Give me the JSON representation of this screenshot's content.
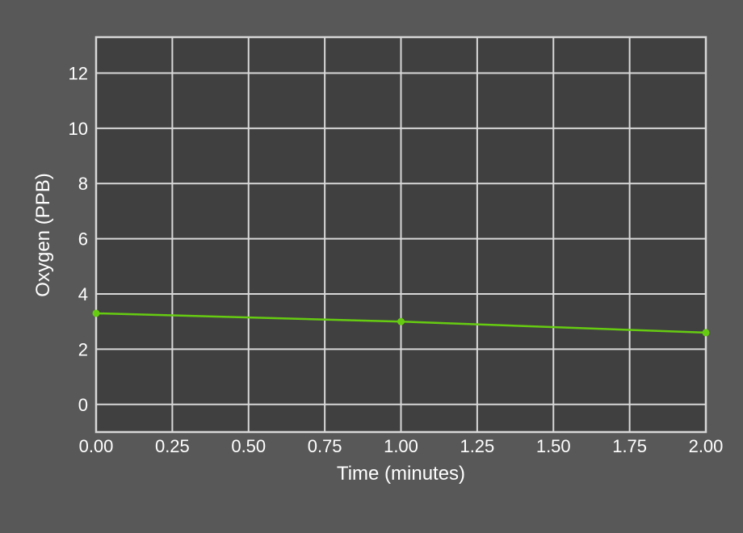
{
  "colors": {
    "page_background": "#585858",
    "plot_background": "#404040",
    "grid": "#d8d8d8",
    "frame": "#d8d8d8",
    "text": "#ffffff",
    "series": "#66cc11"
  },
  "chart_data": {
    "type": "line",
    "xlabel": "Time (minutes)",
    "ylabel": "Oxygen (PPB)",
    "xlim": [
      0,
      2
    ],
    "ylim": [
      -1,
      13.3
    ],
    "x_ticks": [
      0,
      0.25,
      0.5,
      0.75,
      1.0,
      1.25,
      1.5,
      1.75,
      2.0
    ],
    "x_tick_labels": [
      "0.00",
      "0.25",
      "0.50",
      "0.75",
      "1.00",
      "1.25",
      "1.50",
      "1.75",
      "2.00"
    ],
    "y_ticks": [
      0,
      2,
      4,
      6,
      8,
      10,
      12
    ],
    "y_tick_labels": [
      "0",
      "2",
      "4",
      "6",
      "8",
      "10",
      "12"
    ],
    "grid": true,
    "legend": "none",
    "series": [
      {
        "color": "#66cc11",
        "x": [
          0,
          1,
          2
        ],
        "y": [
          3.3,
          3.0,
          2.6
        ]
      }
    ]
  }
}
